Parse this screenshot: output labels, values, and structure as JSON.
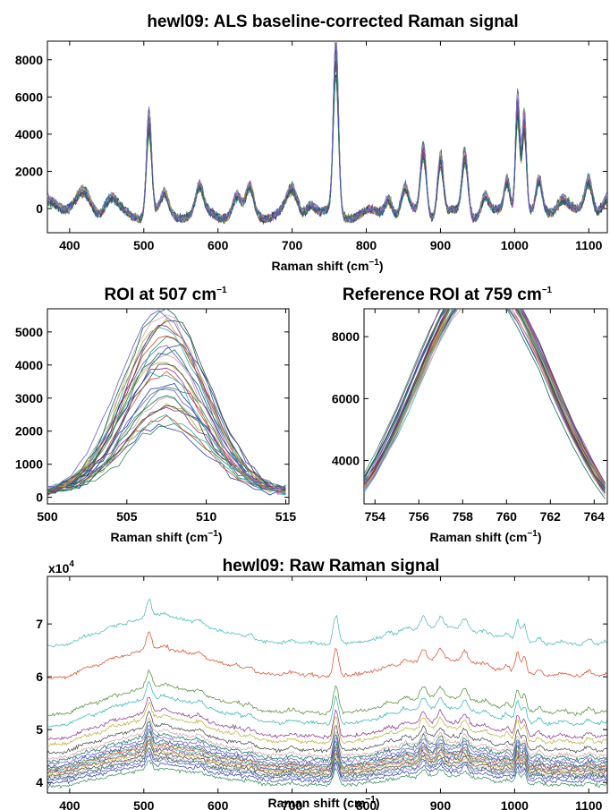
{
  "chart_data": [
    {
      "type": "line",
      "title": "hewl09: ALS baseline-corrected Raman signal",
      "xlabel": "Raman shift (cm",
      "xlabel_sup": "−1",
      "xlabel_end": ")",
      "xlim": [
        370,
        1125
      ],
      "ylim": [
        -1300,
        9000
      ],
      "xticks": [
        400,
        500,
        600,
        700,
        800,
        900,
        1000,
        1100
      ],
      "yticks": [
        0,
        2000,
        4000,
        6000,
        8000
      ],
      "n_series": 30,
      "peaks": [
        {
          "x": 375,
          "h": 900,
          "w": 12
        },
        {
          "x": 420,
          "h": 1100,
          "w": 10
        },
        {
          "x": 455,
          "h": 800,
          "w": 8
        },
        {
          "x": 507,
          "h": 5000,
          "w": 3.5
        },
        {
          "x": 528,
          "h": 900,
          "w": 5
        },
        {
          "x": 575,
          "h": 1300,
          "w": 5
        },
        {
          "x": 625,
          "h": 900,
          "w": 5
        },
        {
          "x": 643,
          "h": 1300,
          "w": 5
        },
        {
          "x": 700,
          "h": 1200,
          "w": 7
        },
        {
          "x": 725,
          "h": 700,
          "w": 6
        },
        {
          "x": 759,
          "h": 8300,
          "w": 3.5
        },
        {
          "x": 830,
          "h": 1000,
          "w": 5
        },
        {
          "x": 852,
          "h": 1300,
          "w": 5
        },
        {
          "x": 877,
          "h": 3400,
          "w": 4
        },
        {
          "x": 900,
          "h": 3000,
          "w": 4
        },
        {
          "x": 933,
          "h": 3100,
          "w": 4
        },
        {
          "x": 960,
          "h": 1000,
          "w": 5
        },
        {
          "x": 990,
          "h": 1800,
          "w": 4
        },
        {
          "x": 1004,
          "h": 6000,
          "w": 3
        },
        {
          "x": 1013,
          "h": 5000,
          "w": 3
        },
        {
          "x": 1033,
          "h": 1600,
          "w": 4
        },
        {
          "x": 1065,
          "h": 1000,
          "w": 8
        },
        {
          "x": 1100,
          "h": 1700,
          "w": 5
        },
        {
          "x": 1125,
          "h": 1000,
          "w": 8
        }
      ]
    },
    {
      "type": "line",
      "title": "ROI at 507 cm",
      "title_sup": "−1",
      "xlabel": "Raman shift (cm",
      "xlabel_sup": "−1",
      "xlabel_end": ")",
      "xlim": [
        500,
        515.2
      ],
      "ylim": [
        -200,
        5700
      ],
      "xticks": [
        500,
        505,
        510,
        515
      ],
      "yticks": [
        0,
        1000,
        2000,
        3000,
        4000,
        5000
      ],
      "center": 507.5,
      "peak_range": [
        1900,
        5600
      ],
      "n_series": 30
    },
    {
      "type": "line",
      "title": "Reference ROI at 759 cm",
      "title_sup": "−1",
      "xlabel": "Raman shift (cm",
      "xlabel_sup": "−1",
      "xlabel_end": ")",
      "xlim": [
        753.5,
        764.6
      ],
      "ylim": [
        2600,
        8900
      ],
      "xticks": [
        754,
        756,
        758,
        760,
        762,
        764
      ],
      "yticks": [
        4000,
        6000,
        8000
      ],
      "center": 759,
      "peak_range": [
        7600,
        8800
      ],
      "n_series": 30
    },
    {
      "type": "line",
      "title": "hewl09: Raw Raman signal",
      "xlabel": "Raman shift (cm",
      "xlabel_sup": "−1",
      "xlabel_end": ")",
      "xlim": [
        370,
        1125
      ],
      "ylim": [
        3.8,
        7.9
      ],
      "xticks": [
        400,
        500,
        600,
        700,
        800,
        900,
        1000,
        1100
      ],
      "yticks": [
        4,
        5,
        6,
        7
      ],
      "y_scale_label": "x10",
      "y_scale_sup": "4",
      "offsets": [
        6.45,
        5.85,
        5.15,
        4.95,
        4.7,
        4.6,
        4.45,
        4.35,
        4.3,
        4.25,
        4.2,
        4.17,
        4.15,
        4.12,
        4.1,
        4.08,
        4.05,
        4.02,
        4.0,
        3.97,
        3.92,
        3.85
      ],
      "series_colors_top": [
        "#3fb5b5",
        "#dd4422",
        "#4e8a2e"
      ]
    }
  ],
  "palette": [
    "#2b3fa6",
    "#2e8b57",
    "#d9452b",
    "#2ab3b3",
    "#8b2c8b",
    "#b7b02b",
    "#404040",
    "#d3a1a8",
    "#0a6e5c",
    "#6a5acd"
  ]
}
